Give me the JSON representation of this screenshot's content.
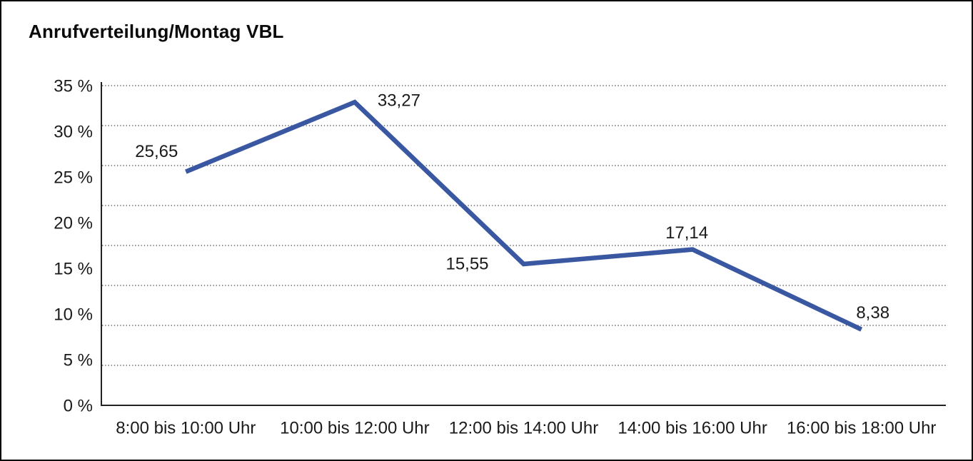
{
  "page": {
    "background": "#ffffff",
    "frame_border_color": "#000000"
  },
  "chart_data": {
    "type": "line",
    "title": "Anrufverteilung/Montag VBL",
    "categories": [
      "8:00 bis 10:00 Uhr",
      "10:00 bis 12:00 Uhr",
      "12:00 bis 14:00 Uhr",
      "14:00 bis 16:00 Uhr",
      "16:00 bis 18:00 Uhr"
    ],
    "values": [
      25.65,
      33.27,
      15.55,
      17.14,
      8.38
    ],
    "value_labels": [
      "25,65",
      "33,27",
      "15,55",
      "17,14",
      "8,38"
    ],
    "y_ticks": [
      "35 %",
      "30 %",
      "25 %",
      "20 %",
      "15 %",
      "10 %",
      "5 %",
      "0 %"
    ],
    "ylim": [
      0,
      35
    ],
    "y_tick_step": 5,
    "grid": "horizontal-dotted",
    "grid_intervals": 8,
    "legend": "none",
    "line_color": "#3A57A2",
    "axis_color": "#222222",
    "grid_color": "#4a4a4a",
    "text_color": "#1a1a1a"
  }
}
